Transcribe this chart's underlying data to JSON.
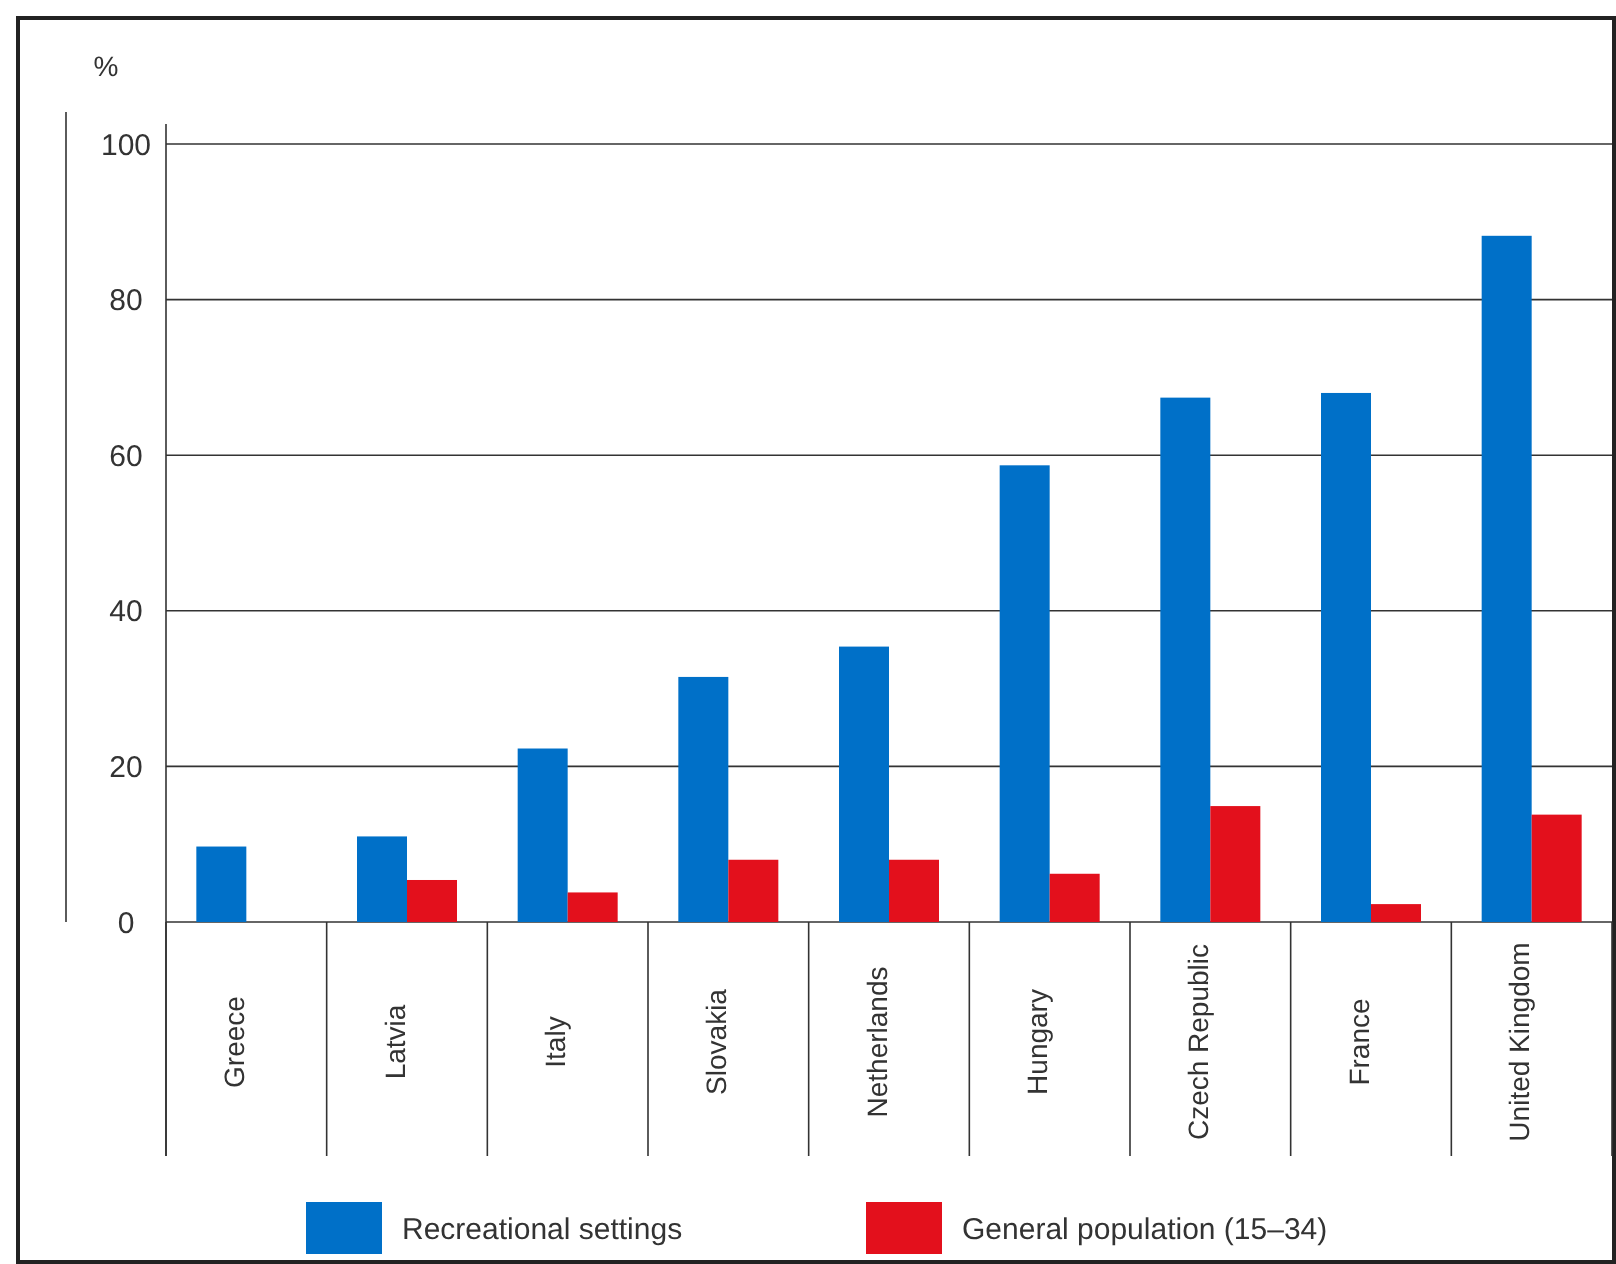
{
  "chart_data": {
    "type": "bar",
    "ylabel": "%",
    "categories": [
      "Greece",
      "Latvia",
      "Italy",
      "Slovakia",
      "Netherlands",
      "Hungary",
      "Czech Republic",
      "France",
      "United Kingdom"
    ],
    "series": [
      {
        "name": "Recreational settings",
        "color": "#0070c8",
        "values": [
          9.7,
          11,
          22.3,
          31.5,
          35.4,
          58.7,
          67.4,
          68,
          88.2
        ]
      },
      {
        "name": "General population (15–34)",
        "color": "#e3101c",
        "values": [
          null,
          5.4,
          3.8,
          8,
          8,
          6.2,
          14.9,
          2.3,
          13.8
        ]
      }
    ],
    "ylim": [
      0,
      100
    ],
    "yticks": [
      0,
      20,
      40,
      60,
      80,
      100
    ],
    "grid": "y",
    "legend": "bottom"
  }
}
